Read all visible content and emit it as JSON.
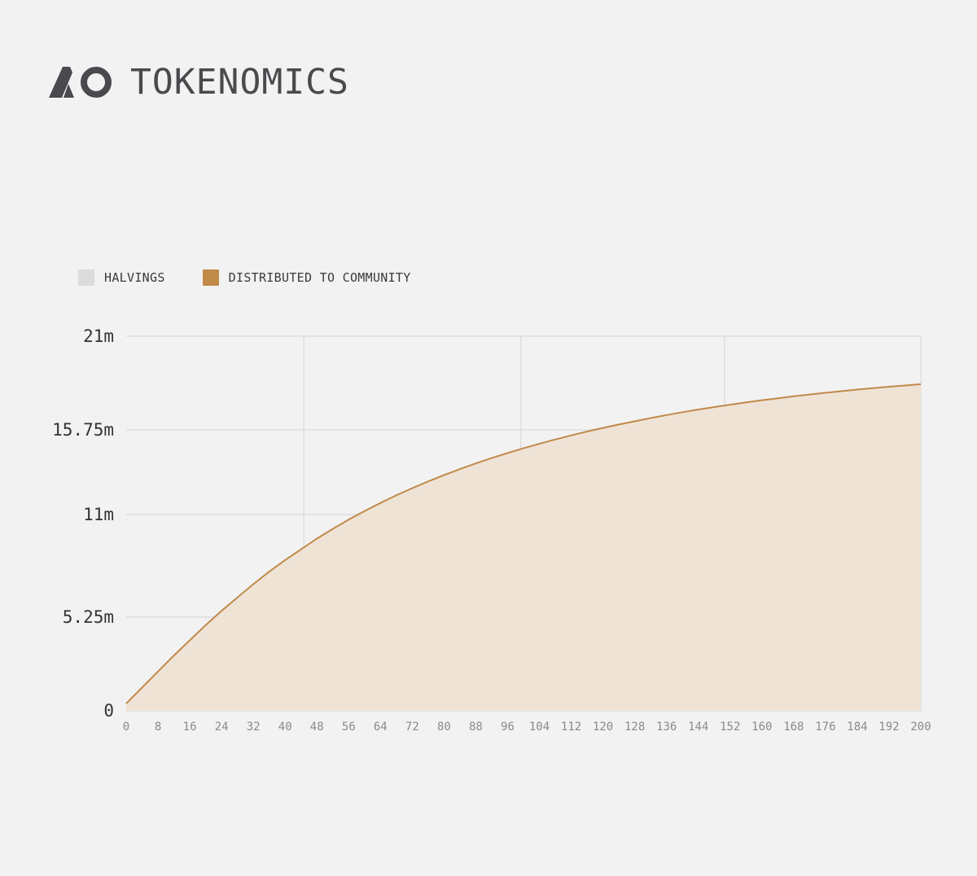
{
  "header": {
    "logo_icon": "ao-logo-icon",
    "title": "TOKENOMICS"
  },
  "colors": {
    "background": "#f2f2f2",
    "community": "#c08a4a",
    "community_fill": "#efe3d6",
    "halvings": "#dcdcdc",
    "grid": "#dedede"
  },
  "chart_data": {
    "type": "area",
    "legend_position": "top-left",
    "legend": [
      {
        "name": "HALVINGS",
        "color": "#dcdcdc"
      },
      {
        "name": "DISTRIBUTED TO COMMUNITY",
        "color": "#c08a4a"
      }
    ],
    "x_ticks": [
      0,
      8,
      16,
      24,
      32,
      40,
      48,
      56,
      64,
      72,
      80,
      88,
      96,
      104,
      112,
      120,
      128,
      136,
      144,
      152,
      160,
      168,
      176,
      184,
      192,
      200
    ],
    "xlim": [
      0,
      200
    ],
    "y_ticks": [
      0,
      5.25,
      11,
      15.75,
      21
    ],
    "y_tick_labels": [
      "0",
      "5.25m",
      "11m",
      "15.75m",
      "21m"
    ],
    "ylim": [
      0,
      21
    ],
    "halvings": [
      44.7,
      99.3,
      150.6
    ],
    "series": [
      {
        "name": "DISTRIBUTED TO COMMUNITY",
        "x": [
          0,
          4,
          8,
          12,
          16,
          20,
          24,
          28,
          32,
          36,
          40,
          44,
          48,
          52,
          56,
          60,
          64,
          68,
          72,
          76,
          80,
          84,
          88,
          92,
          96,
          100,
          104,
          108,
          112,
          116,
          120,
          124,
          128,
          132,
          136,
          140,
          144,
          148,
          152,
          156,
          160,
          164,
          168,
          172,
          176,
          180,
          184,
          188,
          192,
          196,
          200
        ],
        "values": [
          0.4,
          1.3,
          2.2,
          3.1,
          3.95,
          4.8,
          5.6,
          6.35,
          7.1,
          7.8,
          8.45,
          9.05,
          9.65,
          10.2,
          10.72,
          11.2,
          11.65,
          12.08,
          12.48,
          12.86,
          13.21,
          13.55,
          13.87,
          14.17,
          14.45,
          14.72,
          14.97,
          15.21,
          15.44,
          15.66,
          15.86,
          16.05,
          16.23,
          16.41,
          16.58,
          16.74,
          16.89,
          17.03,
          17.16,
          17.29,
          17.41,
          17.52,
          17.63,
          17.73,
          17.83,
          17.92,
          18.01,
          18.09,
          18.17,
          18.24,
          18.31
        ]
      }
    ]
  }
}
